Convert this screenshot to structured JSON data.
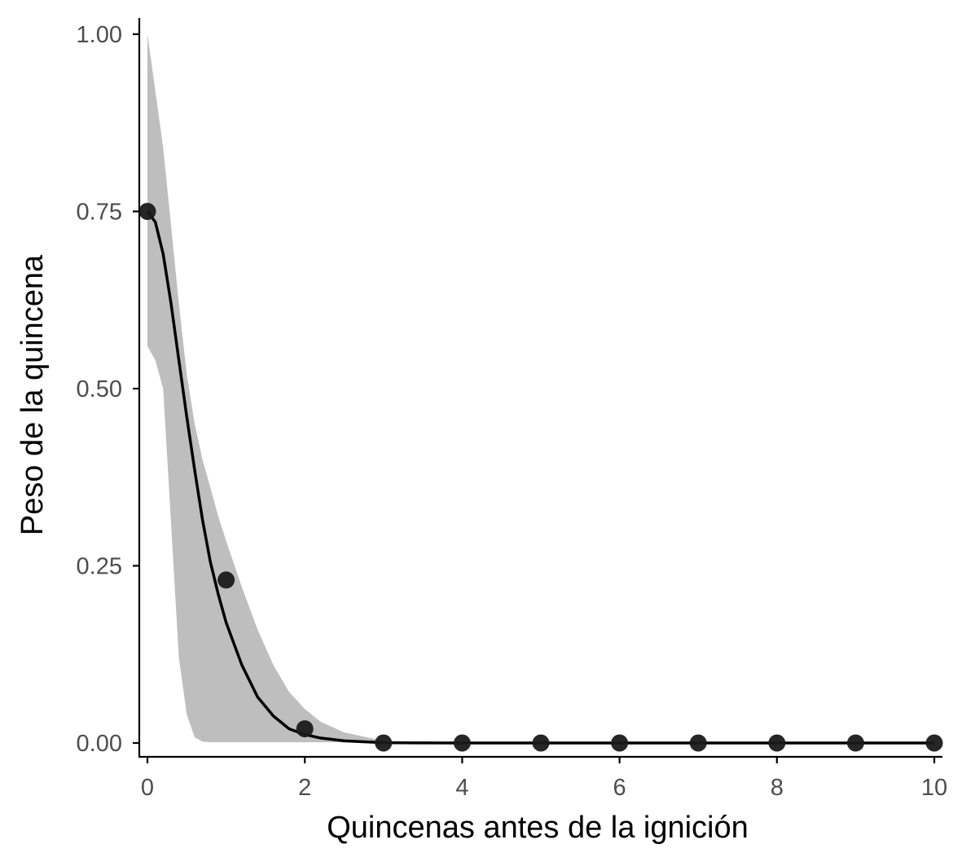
{
  "chart_data": {
    "type": "line",
    "title": "",
    "xlabel": "Quincenas antes de la ignición",
    "ylabel": "Peso de la quincena",
    "xlim": [
      0,
      10
    ],
    "ylim": [
      0,
      1
    ],
    "x_ticks": [
      0,
      2,
      4,
      6,
      8,
      10
    ],
    "x_tick_labels": [
      "0",
      "2",
      "4",
      "6",
      "8",
      "10"
    ],
    "y_ticks": [
      0,
      0.25,
      0.5,
      0.75,
      1.0
    ],
    "y_tick_labels": [
      "0.00",
      "0.25",
      "0.50",
      "0.75",
      "1.00"
    ],
    "grid": false,
    "legend": "none",
    "points": {
      "x": [
        0,
        1,
        2,
        3,
        4,
        5,
        6,
        7,
        8,
        9,
        10
      ],
      "y": [
        0.75,
        0.23,
        0.02,
        0.0,
        0.0,
        0.0,
        0.0,
        0.0,
        0.0,
        0.0,
        0.0
      ]
    },
    "curve": {
      "x": [
        0,
        0.1,
        0.2,
        0.3,
        0.4,
        0.5,
        0.6,
        0.7,
        0.8,
        0.9,
        1.0,
        1.2,
        1.4,
        1.6,
        1.8,
        2.0,
        2.2,
        2.5,
        3.0,
        3.5,
        4,
        5,
        6,
        7,
        8,
        9,
        10
      ],
      "y": [
        0.75,
        0.735,
        0.69,
        0.62,
        0.54,
        0.46,
        0.385,
        0.315,
        0.255,
        0.21,
        0.17,
        0.11,
        0.065,
        0.038,
        0.02,
        0.012,
        0.007,
        0.003,
        0.0005,
        0.0001,
        0,
        0,
        0,
        0,
        0,
        0,
        0
      ]
    },
    "band": {
      "x": [
        0,
        0.1,
        0.2,
        0.3,
        0.4,
        0.5,
        0.6,
        0.7,
        0.8,
        0.9,
        1.0,
        1.2,
        1.4,
        1.6,
        1.8,
        2.0,
        2.2,
        2.5,
        3.0,
        3.2,
        3.5,
        4,
        5,
        6,
        7,
        8,
        9,
        10
      ],
      "upper": [
        1.0,
        0.92,
        0.84,
        0.73,
        0.62,
        0.52,
        0.45,
        0.4,
        0.36,
        0.32,
        0.285,
        0.22,
        0.16,
        0.11,
        0.072,
        0.048,
        0.03,
        0.015,
        0.003,
        0.001,
        0,
        0,
        0,
        0,
        0,
        0,
        0,
        0
      ],
      "lower": [
        0.56,
        0.54,
        0.5,
        0.31,
        0.12,
        0.04,
        0.008,
        0.002,
        0.001,
        0.001,
        0.001,
        0.001,
        0.001,
        0.001,
        0.001,
        0.001,
        0.001,
        0.001,
        0.001,
        0.001,
        0,
        0,
        0,
        0,
        0,
        0,
        0,
        0
      ]
    },
    "colors": {
      "band": "#bebebe",
      "line": "#000000",
      "points": "#1a1a1a",
      "axis": "#000000",
      "tick_text": "#4d4d4d"
    }
  }
}
